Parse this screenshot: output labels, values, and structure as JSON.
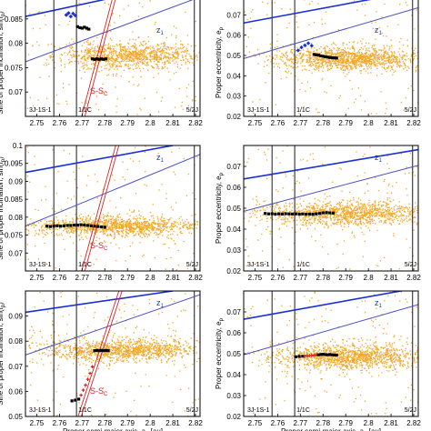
{
  "colors": {
    "family": "#f5a623",
    "resonant_blue": "#1a2fd6",
    "resonant_black": "#000000",
    "resonant_red": "#e01e1e",
    "z1_line": "#4a4fc8",
    "secular_lines": "#e02020",
    "frame": "#000000"
  },
  "chart_data": [
    {
      "type": "scatter",
      "panel": "top-left",
      "xlim": [
        2.745,
        2.822
      ],
      "ylim": [
        0.065,
        0.09
      ],
      "x_ticks": [
        "2.75",
        "2.76",
        "2.77",
        "2.78",
        "2.79",
        "2.8",
        "2.81",
        "2.82"
      ],
      "y_ticks": [
        "0.07",
        "0.075",
        "0.08",
        "0.085"
      ],
      "ylabel": "Sine of proper inclination, sin(I",
      "ylabel_sub": "p",
      "ylabel_close": ")",
      "xlabel": "",
      "labels": {
        "z1": "z",
        "z1_sub": "1",
        "ss": "S-S",
        "ss_sub": "C",
        "res_left": "3J-1S-1",
        "res_mid": "1/1C",
        "res_right": "5/2J"
      },
      "density": 1200,
      "family_center": [
        2.79,
        0.0775
      ],
      "family_spread": [
        0.016,
        0.0013
      ],
      "resonances_x": [
        2.7575,
        2.7675,
        2.8195
      ],
      "z1_line": [
        [
          2.745,
          0.0762
        ],
        [
          2.822,
          0.0895
        ]
      ],
      "z1_line2": [
        [
          2.745,
          0.0855
        ],
        [
          2.79,
          0.09
        ]
      ],
      "ss_lines": [
        [
          [
            2.7698,
            0.065
          ],
          [
            2.7838,
            0.09
          ]
        ],
        [
          [
            2.7712,
            0.065
          ],
          [
            2.7852,
            0.09
          ]
        ]
      ],
      "resonant_series": [
        {
          "color": "#1a2fd6",
          "x": [
            2.763,
            2.764,
            2.765,
            2.766,
            2.767
          ],
          "y": [
            0.0858,
            0.0862,
            0.0855,
            0.0861,
            0.0857
          ]
        },
        {
          "color": "#000000",
          "x": [
            2.768,
            2.769,
            2.77,
            2.771,
            2.772,
            2.773
          ],
          "y": [
            0.0834,
            0.0832,
            0.0831,
            0.0833,
            0.0831,
            0.0829
          ]
        },
        {
          "color": "#000000",
          "x": [
            2.7745,
            2.7755,
            2.7765,
            2.7775,
            2.7785,
            2.7795,
            2.7805
          ],
          "y": [
            0.0768,
            0.0767,
            0.0768,
            0.0767,
            0.0768,
            0.0767,
            0.0768
          ]
        }
      ]
    },
    {
      "type": "scatter",
      "panel": "top-right",
      "xlim": [
        2.745,
        2.822
      ],
      "ylim": [
        0.02,
        0.08
      ],
      "x_ticks": [
        "2.75",
        "2.76",
        "2.77",
        "2.78",
        "2.79",
        "2.8",
        "2.81",
        "2.82"
      ],
      "y_ticks": [
        "0.02",
        "0.03",
        "0.04",
        "0.05",
        "0.06",
        "0.07"
      ],
      "ylabel": "Proper eccentricity, e",
      "ylabel_sub": "p",
      "ylabel_close": "",
      "xlabel": "",
      "labels": {
        "z1": "z",
        "z1_sub": "1",
        "ss": "",
        "ss_sub": "",
        "res_left": "3J-1S-1",
        "res_mid": "1/1C",
        "res_right": "5/2J"
      },
      "density": 1400,
      "family_center": [
        2.792,
        0.0485
      ],
      "family_spread": [
        0.016,
        0.0028
      ],
      "resonances_x": [
        2.7575,
        2.7675,
        2.8195
      ],
      "z1_line": [
        [
          2.745,
          0.0485
        ],
        [
          2.822,
          0.0735
        ]
      ],
      "z1_line2": [
        [
          2.745,
          0.066
        ],
        [
          2.822,
          0.082
        ]
      ],
      "ss_lines": [],
      "resonant_series": [
        {
          "color": "#1a2fd6",
          "x": [
            2.769,
            2.7705,
            2.772,
            2.7735,
            2.775
          ],
          "y": [
            0.0525,
            0.054,
            0.055,
            0.056,
            0.0548
          ]
        },
        {
          "color": "#000000",
          "x": [
            2.776,
            2.777,
            2.778,
            2.779,
            2.78,
            2.781,
            2.782,
            2.783,
            2.784,
            2.785,
            2.786
          ],
          "y": [
            0.0505,
            0.0503,
            0.0502,
            0.0498,
            0.0496,
            0.0494,
            0.0492,
            0.049,
            0.0489,
            0.0488,
            0.0487
          ]
        }
      ]
    },
    {
      "type": "scatter",
      "panel": "middle-left",
      "xlim": [
        2.745,
        2.822
      ],
      "ylim": [
        0.065,
        0.1
      ],
      "x_ticks": [
        "2.75",
        "2.76",
        "2.77",
        "2.78",
        "2.79",
        "2.8",
        "2.81",
        "2.82"
      ],
      "y_ticks": [
        "0.07",
        "0.075",
        "0.08",
        "0.085",
        "0.09",
        "0.095",
        "0.1"
      ],
      "ylabel": "Sine of proper inclination, sin(I",
      "ylabel_sub": "p",
      "ylabel_close": ")",
      "xlabel": "",
      "labels": {
        "z1": "z",
        "z1_sub": "1",
        "ss": "S-S",
        "ss_sub": "C",
        "res_left": "3J-1S-1",
        "res_mid": "1/1C",
        "res_right": "5/2J"
      },
      "density": 1300,
      "family_center": [
        2.785,
        0.0775
      ],
      "family_spread": [
        0.018,
        0.0014
      ],
      "resonances_x": [
        2.7575,
        2.7675,
        2.8195
      ],
      "z1_line": [
        [
          2.745,
          0.0775
        ],
        [
          2.822,
          0.0975
        ]
      ],
      "z1_line2": [
        [
          2.745,
          0.0925
        ],
        [
          2.81,
          0.1
        ]
      ],
      "ss_lines": [
        [
          [
            2.7698,
            0.065
          ],
          [
            2.7848,
            0.1
          ]
        ],
        [
          [
            2.7712,
            0.065
          ],
          [
            2.7862,
            0.1
          ]
        ]
      ],
      "resonant_series": [
        {
          "color": "#000000",
          "x": [
            2.7545,
            2.756,
            2.7575,
            2.759,
            2.7605,
            2.762,
            2.7635,
            2.765,
            2.7665,
            2.768,
            2.7695,
            2.771,
            2.7725,
            2.774,
            2.7755,
            2.777,
            2.7785,
            2.78
          ],
          "y": [
            0.0775,
            0.0774,
            0.0775,
            0.0776,
            0.0775,
            0.0776,
            0.0777,
            0.0777,
            0.0778,
            0.0778,
            0.0779,
            0.0778,
            0.0777,
            0.0776,
            0.0775,
            0.0774,
            0.0773,
            0.0772
          ]
        }
      ]
    },
    {
      "type": "scatter",
      "panel": "middle-right",
      "xlim": [
        2.745,
        2.822
      ],
      "ylim": [
        0.02,
        0.08
      ],
      "x_ticks": [
        "2.75",
        "2.76",
        "2.77",
        "2.78",
        "2.79",
        "2.8",
        "2.81",
        "2.82"
      ],
      "y_ticks": [
        "0.02",
        "0.03",
        "0.04",
        "0.05",
        "0.06",
        "0.07"
      ],
      "ylabel": "Proper eccentricity, e",
      "ylabel_sub": "p",
      "ylabel_close": "",
      "xlabel": "",
      "labels": {
        "z1": "z",
        "z1_sub": "1",
        "ss": "",
        "ss_sub": "",
        "res_left": "3J-1S-1",
        "res_mid": "1/1C",
        "res_right": "5/2J"
      },
      "density": 1400,
      "family_center": [
        2.79,
        0.0475
      ],
      "family_spread": [
        0.018,
        0.0028
      ],
      "resonances_x": [
        2.7575,
        2.7675,
        2.8195
      ],
      "z1_line": [
        [
          2.745,
          0.0485
        ],
        [
          2.822,
          0.0705
        ]
      ],
      "z1_line2": [
        [
          2.745,
          0.064
        ],
        [
          2.822,
          0.078
        ]
      ],
      "ss_lines": [],
      "resonant_series": [
        {
          "color": "#000000",
          "x": [
            2.7545,
            2.756,
            2.7575,
            2.759,
            2.7605,
            2.762,
            2.7635,
            2.765,
            2.7665,
            2.768,
            2.7695,
            2.771,
            2.7725,
            2.774,
            2.7755,
            2.777,
            2.7785,
            2.78,
            2.7815,
            2.783,
            2.7845
          ],
          "y": [
            0.0475,
            0.0473,
            0.0474,
            0.0472,
            0.0473,
            0.0472,
            0.0474,
            0.0473,
            0.0472,
            0.0473,
            0.0472,
            0.0473,
            0.0471,
            0.0472,
            0.0471,
            0.0473,
            0.0475,
            0.0478,
            0.0479,
            0.0478,
            0.0477
          ]
        }
      ]
    },
    {
      "type": "scatter",
      "panel": "bottom-left",
      "xlim": [
        2.745,
        2.822
      ],
      "ylim": [
        0.05,
        0.1
      ],
      "x_ticks": [
        "2.75",
        "2.76",
        "2.77",
        "2.78",
        "2.79",
        "2.8",
        "2.81",
        "2.82"
      ],
      "y_ticks": [
        "0.05",
        "0.06",
        "0.07",
        "0.08",
        "0.09"
      ],
      "ylabel": "Sine of proper inclination, sin(I",
      "ylabel_sub": "p",
      "ylabel_close": ")",
      "xlabel": "Proper semi-major axis, a",
      "xlabel_sub": "p",
      "xlabel_close": " [au]",
      "labels": {
        "z1": "z",
        "z1_sub": "1",
        "ss": "S-S",
        "ss_sub": "C",
        "res_left": "3J-1S-1",
        "res_mid": "1/1C",
        "res_right": "5/2J"
      },
      "density": 1300,
      "family_center": [
        2.788,
        0.0765
      ],
      "family_spread": [
        0.017,
        0.0022
      ],
      "resonances_x": [
        2.7575,
        2.7675,
        2.8195
      ],
      "z1_line": [
        [
          2.745,
          0.0745
        ],
        [
          2.822,
          0.0985
        ]
      ],
      "z1_line2": [
        [
          2.745,
          0.0915
        ],
        [
          2.81,
          0.1
        ]
      ],
      "ss_lines": [
        [
          [
            2.7682,
            0.05
          ],
          [
            2.7862,
            0.1
          ]
        ],
        [
          [
            2.7696,
            0.05
          ],
          [
            2.7876,
            0.1
          ]
        ]
      ],
      "resonant_series": [
        {
          "color": "#000000",
          "x": [
            2.7655,
            2.767,
            2.7685
          ],
          "y": [
            0.0562,
            0.0565,
            0.0569
          ]
        },
        {
          "color": "#e01e1e",
          "x": [
            2.7695,
            2.7705,
            2.7715,
            2.7725,
            2.7735,
            2.7745
          ],
          "y": [
            0.0585,
            0.0605,
            0.0625,
            0.0648,
            0.0672,
            0.0698
          ]
        },
        {
          "color": "#000000",
          "x": [
            2.7755,
            2.7765,
            2.7775,
            2.7785,
            2.7795,
            2.7805,
            2.7815
          ],
          "y": [
            0.0762,
            0.0763,
            0.0762,
            0.0763,
            0.0762,
            0.0763,
            0.0762
          ]
        }
      ]
    },
    {
      "type": "scatter",
      "panel": "bottom-right",
      "xlim": [
        2.745,
        2.822
      ],
      "ylim": [
        0.02,
        0.08
      ],
      "x_ticks": [
        "2.75",
        "2.76",
        "2.77",
        "2.78",
        "2.79",
        "2.8",
        "2.81",
        "2.82"
      ],
      "y_ticks": [
        "0.02",
        "0.03",
        "0.04",
        "0.05",
        "0.06",
        "0.07"
      ],
      "ylabel": "Proper eccentricity, e",
      "ylabel_sub": "p",
      "ylabel_close": "",
      "xlabel": "Proper semi-major axis, a",
      "xlabel_sub": "p",
      "xlabel_close": " [au]",
      "labels": {
        "z1": "z",
        "z1_sub": "1",
        "ss": "",
        "ss_sub": "",
        "res_left": "3J-1S-1",
        "res_mid": "1/1C",
        "res_right": "5/2J"
      },
      "density": 1400,
      "family_center": [
        2.792,
        0.0485
      ],
      "family_spread": [
        0.017,
        0.003
      ],
      "resonances_x": [
        2.7575,
        2.7675,
        2.8195
      ],
      "z1_line": [
        [
          2.745,
          0.0495
        ],
        [
          2.822,
          0.0735
        ]
      ],
      "z1_line2": [
        [
          2.745,
          0.0665
        ],
        [
          2.822,
          0.0815
        ]
      ],
      "ss_lines": [],
      "resonant_series": [
        {
          "color": "#000000",
          "x": [
            2.768,
            2.7695,
            2.771
          ],
          "y": [
            0.0485,
            0.0487,
            0.0488
          ]
        },
        {
          "color": "#e01e1e",
          "x": [
            2.772,
            2.773,
            2.774,
            2.775,
            2.776,
            2.777
          ],
          "y": [
            0.0489,
            0.049,
            0.0491,
            0.0492,
            0.0493,
            0.0494
          ]
        },
        {
          "color": "#000000",
          "x": [
            2.778,
            2.779,
            2.78,
            2.781,
            2.782,
            2.783,
            2.784,
            2.785,
            2.786
          ],
          "y": [
            0.0495,
            0.0496,
            0.0497,
            0.0496,
            0.0495,
            0.0496,
            0.0495,
            0.0494,
            0.0493
          ]
        }
      ]
    }
  ]
}
